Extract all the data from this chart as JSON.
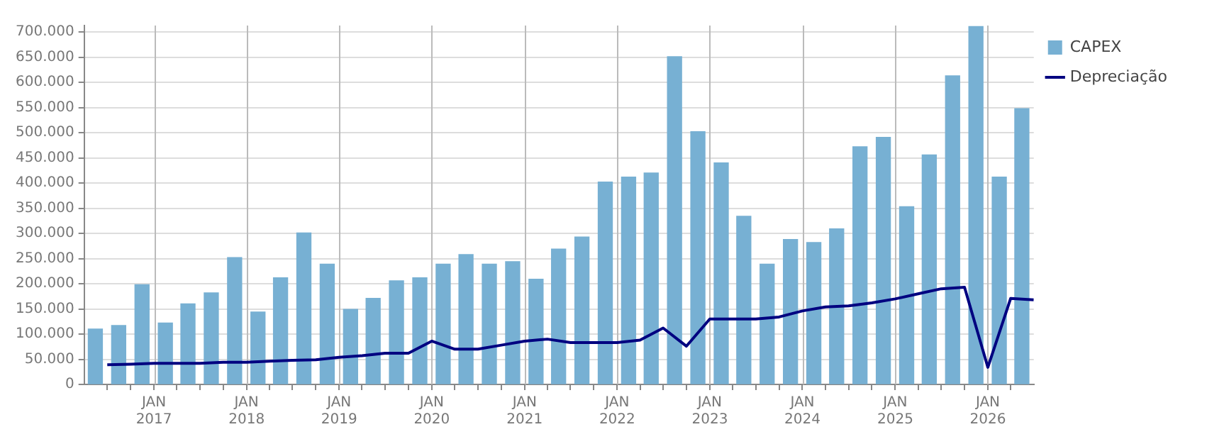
{
  "chart_data": {
    "type": "bar",
    "legend": "top right",
    "grid": true,
    "xlim": [
      "2016-04-01",
      "2026-07-01"
    ],
    "xticks": [
      {
        "value": "2016-07",
        "label": null
      },
      {
        "value": "2016-10",
        "label": null
      },
      {
        "value": "2017-01",
        "label": "JAN\n2017"
      },
      {
        "value": "2017-04",
        "label": null
      },
      {
        "value": "2017-07",
        "label": null
      },
      {
        "value": "2017-10",
        "label": null
      },
      {
        "value": "2018-01",
        "label": "JAN\n2018"
      },
      {
        "value": "2018-04",
        "label": null
      },
      {
        "value": "2018-07",
        "label": null
      },
      {
        "value": "2018-10",
        "label": null
      },
      {
        "value": "2019-01",
        "label": "JAN\n2019"
      },
      {
        "value": "2019-04",
        "label": null
      },
      {
        "value": "2019-07",
        "label": null
      },
      {
        "value": "2019-10",
        "label": null
      },
      {
        "value": "2020-01",
        "label": "JAN\n2020"
      },
      {
        "value": "2020-04",
        "label": null
      },
      {
        "value": "2020-07",
        "label": null
      },
      {
        "value": "2020-10",
        "label": null
      },
      {
        "value": "2021-01",
        "label": "JAN\n2021"
      },
      {
        "value": "2021-04",
        "label": null
      },
      {
        "value": "2021-07",
        "label": null
      },
      {
        "value": "2021-10",
        "label": null
      },
      {
        "value": "2022-01",
        "label": "JAN\n2022"
      },
      {
        "value": "2022-04",
        "label": null
      },
      {
        "value": "2022-07",
        "label": null
      },
      {
        "value": "2022-10",
        "label": null
      },
      {
        "value": "2023-01",
        "label": "JAN\n2023"
      },
      {
        "value": "2023-04",
        "label": null
      },
      {
        "value": "2023-07",
        "label": null
      },
      {
        "value": "2023-10",
        "label": null
      },
      {
        "value": "2024-01",
        "label": "JAN\n2024"
      },
      {
        "value": "2024-04",
        "label": null
      },
      {
        "value": "2024-07",
        "label": null
      },
      {
        "value": "2024-10",
        "label": null
      },
      {
        "value": "2025-01",
        "label": "JAN\n2025"
      },
      {
        "value": "2025-04",
        "label": null
      },
      {
        "value": "2025-07",
        "label": null
      },
      {
        "value": "2025-10",
        "label": null
      },
      {
        "value": "2026-01",
        "label": "JAN\n2026"
      },
      {
        "value": "2026-04",
        "label": null
      }
    ],
    "ylim": [
      0,
      713000
    ],
    "yticks": [
      0,
      {
        "value": 50000,
        "label": "50.000"
      },
      {
        "value": 100000,
        "label": "100.000"
      },
      {
        "value": 150000,
        "label": "150.000"
      },
      {
        "value": 200000,
        "label": "200.000"
      },
      {
        "value": 250000,
        "label": "250.000"
      },
      {
        "value": 300000,
        "label": "300.000"
      },
      {
        "value": 350000,
        "label": "350.000"
      },
      {
        "value": 400000,
        "label": "400.000"
      },
      {
        "value": 450000,
        "label": "450.000"
      },
      {
        "value": 500000,
        "label": "500.000"
      },
      {
        "value": 550000,
        "label": "550.000"
      },
      {
        "value": 600000,
        "label": "600.000"
      },
      {
        "value": 650000,
        "label": "650.000"
      },
      {
        "value": 700000,
        "label": "700.000"
      }
    ],
    "series": [
      {
        "name": "CAPEX",
        "color": "#77b0d3",
        "x": [
          "2016-05-15",
          "2016-08-15",
          "2016-11-15",
          "2017-02-15",
          "2017-05-15",
          "2017-08-15",
          "2017-11-15",
          "2018-02-15",
          "2018-05-15",
          "2018-08-15",
          "2018-11-15",
          "2019-02-15",
          "2019-05-15",
          "2019-08-15",
          "2019-11-15",
          "2020-02-15",
          "2020-05-15",
          "2020-08-15",
          "2020-11-15",
          "2021-02-15",
          "2021-05-15",
          "2021-08-15",
          "2021-11-15",
          "2022-02-15",
          "2022-05-15",
          "2022-08-15",
          "2022-11-15",
          "2023-02-15",
          "2023-05-15",
          "2023-08-15",
          "2023-11-15",
          "2024-02-15",
          "2024-05-15",
          "2024-08-15",
          "2024-11-15",
          "2025-02-15",
          "2025-05-15",
          "2025-08-15",
          "2025-11-15",
          "2026-02-15",
          "2026-05-15"
        ],
        "values": [
          110000,
          117000,
          198000,
          122000,
          160000,
          182000,
          252000,
          144000,
          212000,
          301000,
          239000,
          149000,
          171000,
          206000,
          212000,
          239000,
          258000,
          239000,
          244000,
          209000,
          269000,
          293000,
          402000,
          412000,
          420000,
          651000,
          502000,
          440000,
          334000,
          239000,
          288000,
          282000,
          309000,
          472000,
          491000,
          353000,
          456000,
          613000,
          711000,
          412000,
          548000
        ]
      },
      {
        "name": "Depreciação",
        "type": "line",
        "color": "#000080",
        "marker": "none",
        "x": [
          "2016-07",
          "2016-10",
          "2017-01",
          "2017-04",
          "2017-07",
          "2017-10",
          "2018-01",
          "2018-04",
          "2018-07",
          "2018-10",
          "2019-01",
          "2019-04",
          "2019-07",
          "2019-10",
          "2020-01",
          "2020-04",
          "2020-07",
          "2020-10",
          "2021-01",
          "2021-04",
          "2021-07",
          "2021-10",
          "2022-01",
          "2022-04",
          "2022-07",
          "2022-10",
          "2023-01",
          "2023-04",
          "2023-07",
          "2023-10",
          "2024-01",
          "2024-04",
          "2024-07",
          "2024-10",
          "2025-01",
          "2025-04",
          "2025-07",
          "2025-10",
          "2026-01",
          "2026-04",
          "2026-07"
        ],
        "values": [
          39000,
          40000,
          42000,
          42000,
          42000,
          44000,
          44000,
          46000,
          48000,
          49000,
          54000,
          57000,
          62000,
          62000,
          86000,
          70000,
          70000,
          78000,
          86000,
          90000,
          83000,
          83000,
          83000,
          88000,
          112000,
          76000,
          130000,
          130000,
          130000,
          134000,
          146000,
          154000,
          156000,
          162000,
          170000,
          180000,
          190000,
          193000,
          34000,
          171000,
          168000
        ]
      }
    ]
  }
}
